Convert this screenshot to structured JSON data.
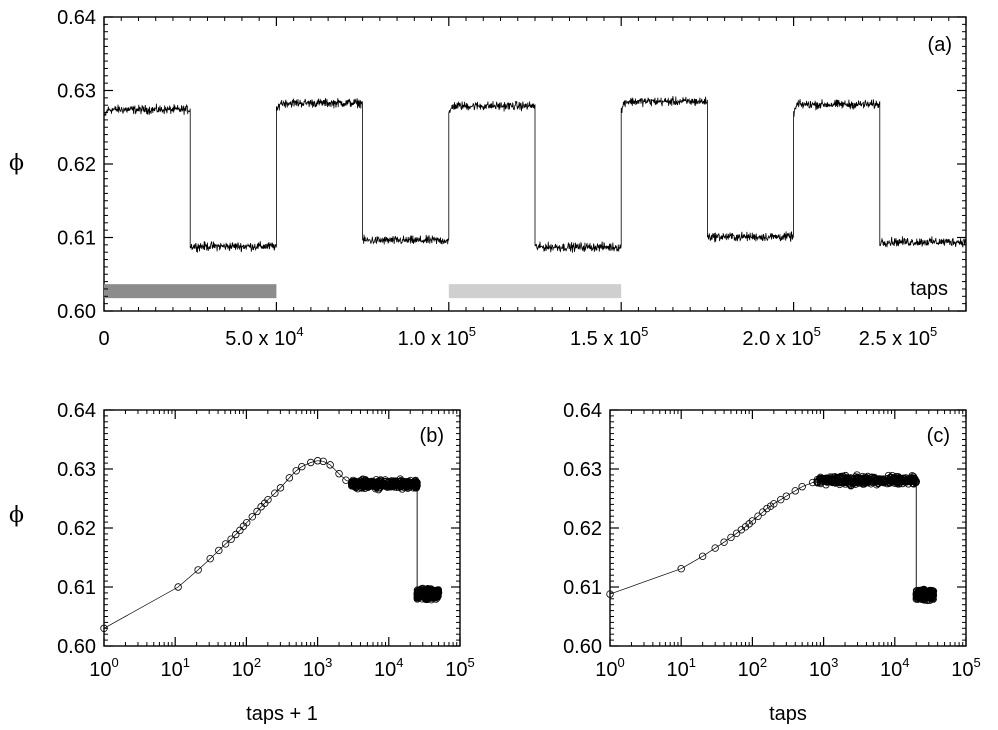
{
  "chart_data": [
    {
      "type": "line",
      "panel": "(a)",
      "ylabel": "ϕ",
      "xlabel": "",
      "annotation": "taps",
      "xlim": [
        0,
        250000
      ],
      "ylim": [
        0.6,
        0.64
      ],
      "x_ticks": [
        {
          "value": 0,
          "label": "0",
          "mantissa": "",
          "exp": ""
        },
        {
          "value": 50000,
          "label": "5.0 x 10^4",
          "mantissa": "5.0 x 10",
          "exp": "4"
        },
        {
          "value": 100000,
          "label": "1.0 x 10^5",
          "mantissa": "1.0 x 10",
          "exp": "5"
        },
        {
          "value": 150000,
          "label": "1.5 x 10^5",
          "mantissa": "1.5 x 10",
          "exp": "5"
        },
        {
          "value": 200000,
          "label": "2.0 x 10^5",
          "mantissa": "2.0 x 10",
          "exp": "5"
        },
        {
          "value": 250000,
          "label": "2.5 x 10^5",
          "mantissa": "2.5 x 10",
          "exp": "5"
        }
      ],
      "y_ticks": [
        "0.60",
        "0.61",
        "0.62",
        "0.63",
        "0.64"
      ],
      "levels": [
        {
          "x_start": 0,
          "x_end": 25000,
          "phi": 0.6274
        },
        {
          "x_start": 25000,
          "x_end": 50000,
          "phi": 0.6088
        },
        {
          "x_start": 50000,
          "x_end": 75000,
          "phi": 0.6283
        },
        {
          "x_start": 75000,
          "x_end": 100000,
          "phi": 0.6096
        },
        {
          "x_start": 100000,
          "x_end": 125000,
          "phi": 0.6279
        },
        {
          "x_start": 125000,
          "x_end": 150000,
          "phi": 0.6087
        },
        {
          "x_start": 150000,
          "x_end": 175000,
          "phi": 0.6285
        },
        {
          "x_start": 175000,
          "x_end": 200000,
          "phi": 0.6101
        },
        {
          "x_start": 200000,
          "x_end": 225000,
          "phi": 0.6281
        },
        {
          "x_start": 225000,
          "x_end": 250000,
          "phi": 0.6094
        }
      ],
      "highlight_bars": [
        {
          "x_start": 0,
          "x_end": 50000,
          "phi": 0.6027,
          "color": "#8c8c8c"
        },
        {
          "x_start": 100000,
          "x_end": 150000,
          "phi": 0.6027,
          "color": "#cfcfcf"
        }
      ]
    },
    {
      "type": "scatter",
      "panel": "(b)",
      "ylabel": "ϕ",
      "xlabel": "taps + 1",
      "xscale": "log",
      "xlim": [
        1,
        100000
      ],
      "ylim": [
        0.6,
        0.64
      ],
      "x_ticks": [
        {
          "value": 1,
          "label": "10^0",
          "mantissa": "10",
          "exp": "0"
        },
        {
          "value": 10,
          "label": "10^1",
          "mantissa": "10",
          "exp": "1"
        },
        {
          "value": 100,
          "label": "10^2",
          "mantissa": "10",
          "exp": "2"
        },
        {
          "value": 1000,
          "label": "10^3",
          "mantissa": "10",
          "exp": "3"
        },
        {
          "value": 10000,
          "label": "10^4",
          "mantissa": "10",
          "exp": "4"
        },
        {
          "value": 100000,
          "label": "10^5",
          "mantissa": "10",
          "exp": "5"
        }
      ],
      "y_ticks": [
        "0.60",
        "0.61",
        "0.62",
        "0.63",
        "0.64"
      ],
      "x": [
        1,
        11,
        21,
        31,
        41,
        51,
        61,
        71,
        81,
        91,
        101,
        121,
        141,
        161,
        181,
        201,
        251,
        301,
        401,
        501,
        601,
        801,
        1001,
        1201,
        1501,
        2001,
        2501,
        3001,
        4001,
        5001,
        6001,
        8001,
        10001,
        15001,
        20001,
        25001
      ],
      "y": [
        0.603,
        0.61,
        0.6129,
        0.6148,
        0.6162,
        0.6173,
        0.6181,
        0.6189,
        0.6196,
        0.6203,
        0.6209,
        0.6219,
        0.6228,
        0.6236,
        0.6242,
        0.6248,
        0.6259,
        0.6268,
        0.6285,
        0.6297,
        0.6304,
        0.6311,
        0.6314,
        0.6313,
        0.6307,
        0.6292,
        0.6281,
        0.6277,
        0.6276,
        0.6275,
        0.6276,
        0.6274,
        0.6272,
        0.6271,
        0.627,
        0.6272
      ],
      "cluster_high": {
        "x_start": 3000,
        "x_end": 25000,
        "phi_center": 0.6274,
        "phi_spread": 0.001
      },
      "drop": {
        "x": 25000,
        "phi_from": 0.627,
        "phi_to": 0.609
      },
      "cluster_low": {
        "x_start": 25000,
        "x_end": 50000,
        "phi_center": 0.6088,
        "phi_spread": 0.0012
      }
    },
    {
      "type": "scatter",
      "panel": "(c)",
      "ylabel": "",
      "xlabel": "taps",
      "xscale": "log",
      "xlim": [
        1,
        100000
      ],
      "ylim": [
        0.6,
        0.64
      ],
      "x_ticks": [
        {
          "value": 1,
          "label": "10^0",
          "mantissa": "10",
          "exp": "0"
        },
        {
          "value": 10,
          "label": "10^1",
          "mantissa": "10",
          "exp": "1"
        },
        {
          "value": 100,
          "label": "10^2",
          "mantissa": "10",
          "exp": "2"
        },
        {
          "value": 1000,
          "label": "10^3",
          "mantissa": "10",
          "exp": "3"
        },
        {
          "value": 10000,
          "label": "10^4",
          "mantissa": "10",
          "exp": "4"
        },
        {
          "value": 100000,
          "label": "10^5",
          "mantissa": "10",
          "exp": "5"
        }
      ],
      "y_ticks": [
        "0.60",
        "0.61",
        "0.62",
        "0.63",
        "0.64"
      ],
      "x": [
        1,
        10,
        20,
        30,
        40,
        50,
        60,
        70,
        80,
        90,
        100,
        120,
        140,
        160,
        180,
        200,
        250,
        300,
        400,
        500,
        700,
        1000,
        1500,
        2000,
        3000,
        4000,
        5000,
        7000,
        10000,
        15000,
        20000
      ],
      "y": [
        0.6088,
        0.6131,
        0.6152,
        0.6166,
        0.6176,
        0.6184,
        0.6191,
        0.6197,
        0.6202,
        0.6207,
        0.6212,
        0.622,
        0.6227,
        0.6233,
        0.6237,
        0.6241,
        0.6248,
        0.6254,
        0.6263,
        0.627,
        0.6277,
        0.6281,
        0.6283,
        0.6284,
        0.6285,
        0.6285,
        0.6284,
        0.6283,
        0.6281,
        0.628,
        0.6279
      ],
      "cluster_high": {
        "x_start": 800,
        "x_end": 20000,
        "phi_center": 0.6281,
        "phi_spread": 0.001
      },
      "drop": {
        "x": 20000,
        "phi_from": 0.6279,
        "phi_to": 0.6087
      },
      "cluster_low": {
        "x_start": 20000,
        "x_end": 35000,
        "phi_center": 0.6087,
        "phi_spread": 0.0012
      }
    }
  ]
}
